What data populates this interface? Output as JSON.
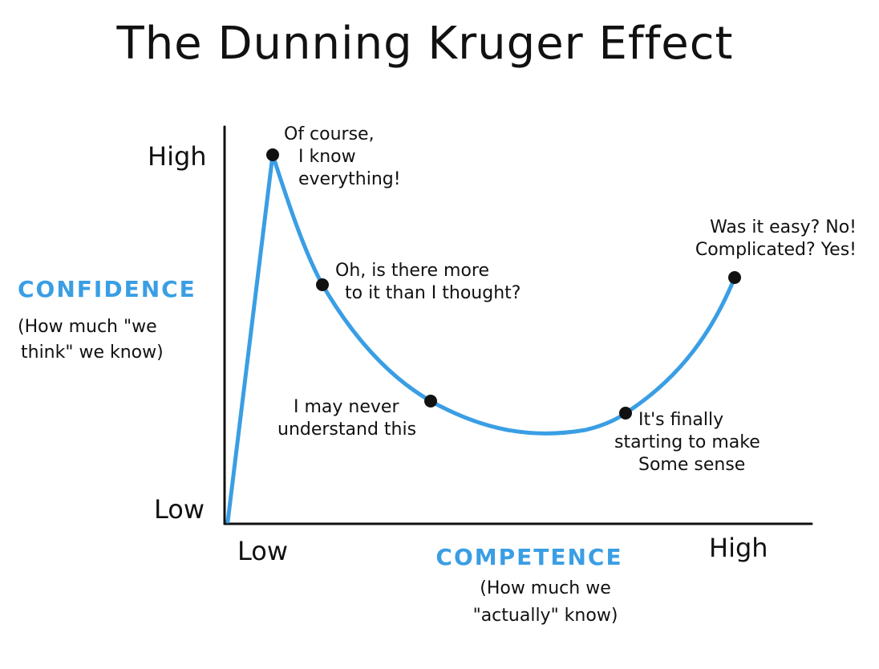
{
  "title": "The Dunning Kruger Effect",
  "colors": {
    "curve": "#3a9ee4",
    "ink": "#111111",
    "accent": "#3a9ee4"
  },
  "y_axis": {
    "label": "CONFIDENCE",
    "sublabel_line1": "(How much \"we",
    "sublabel_line2": "think\" we know)",
    "tick_high": "High",
    "tick_low": "Low"
  },
  "x_axis": {
    "label": "COMPETENCE",
    "sublabel_line1": "(How much we",
    "sublabel_line2": "\"actually\" know)",
    "tick_low": "Low",
    "tick_high": "High"
  },
  "annotations": {
    "peak": [
      "Of course,",
      "I know",
      "everything!"
    ],
    "decline": [
      "Oh, is there more",
      "to it than I thought?"
    ],
    "valley": [
      "I may never",
      "understand this"
    ],
    "rising": [
      "It's finally",
      "starting to make",
      "Some sense"
    ],
    "plateau": [
      "Was it easy? No!",
      "Complicated? Yes!"
    ]
  }
}
